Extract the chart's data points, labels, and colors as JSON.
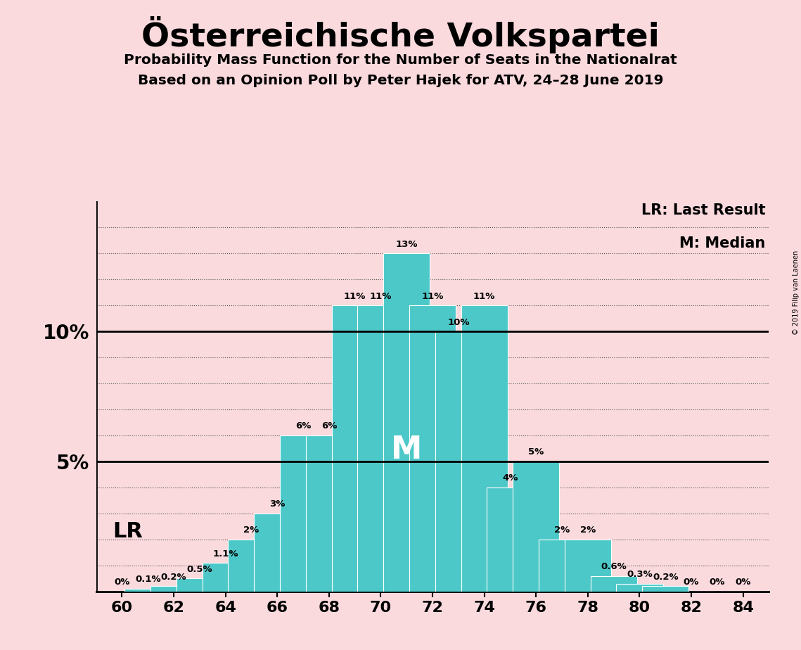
{
  "title": "Österreichische Volkspartei",
  "subtitle1": "Probability Mass Function for the Number of Seats in the Nationalrat",
  "subtitle2": "Based on an Opinion Poll by Peter Hajek for ATV, 24–28 June 2019",
  "copyright": "© 2019 Filip van Laenen",
  "seats": [
    60,
    61,
    62,
    63,
    64,
    65,
    66,
    67,
    68,
    69,
    70,
    71,
    72,
    73,
    74,
    75,
    76,
    77,
    78,
    79,
    80,
    81,
    82,
    83,
    84
  ],
  "probabilities": [
    0.0,
    0.1,
    0.2,
    0.5,
    1.1,
    2.0,
    3.0,
    6.0,
    6.0,
    11.0,
    11.0,
    13.0,
    11.0,
    10.0,
    11.0,
    4.0,
    5.0,
    2.0,
    2.0,
    0.6,
    0.3,
    0.2,
    0.0,
    0.0,
    0.0
  ],
  "labels": [
    "0%",
    "0.1%",
    "0.2%",
    "0.5%",
    "1.1%",
    "2%",
    "3%",
    "6%",
    "6%",
    "11%",
    "11%",
    "13%",
    "11%",
    "10%",
    "11%",
    "4%",
    "5%",
    "2%",
    "2%",
    "0.6%",
    "0.3%",
    "0.2%",
    "0%",
    "0%",
    "0%"
  ],
  "bar_color": "#4dc8c8",
  "background_color": "#fadadd",
  "last_result_seat": 62,
  "median_seat": 71,
  "lr_label": "LR",
  "median_label": "M",
  "legend_lr": "LR: Last Result",
  "legend_m": "M: Median",
  "xlim": [
    59.0,
    85.0
  ],
  "ylim": [
    0,
    15
  ],
  "solid_lines": [
    5,
    10
  ],
  "dotted_grid_values": [
    1,
    2,
    3,
    4,
    6,
    7,
    8,
    9,
    11,
    12,
    13,
    14
  ],
  "ytick_positions": [
    5,
    10
  ],
  "ytick_labels": [
    "5%",
    "10%"
  ]
}
